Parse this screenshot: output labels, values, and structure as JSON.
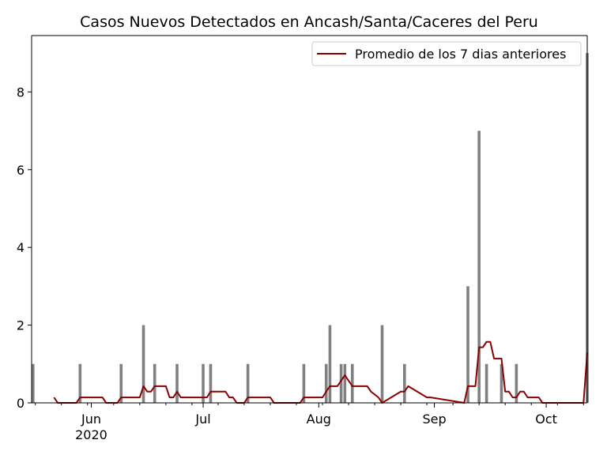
{
  "chart_data": {
    "type": "bar",
    "title": "Casos Nuevos Detectados en Ancash/Santa/Caceres del Peru",
    "xlabel": "",
    "ylabel": "",
    "x_ticks": [
      {
        "date": "2020-06-01",
        "label": "Jun",
        "sublabel": "2020"
      },
      {
        "date": "2020-07-01",
        "label": "Jul",
        "sublabel": ""
      },
      {
        "date": "2020-08-01",
        "label": "Aug",
        "sublabel": ""
      },
      {
        "date": "2020-09-01",
        "label": "Sep",
        "sublabel": ""
      },
      {
        "date": "2020-10-01",
        "label": "Oct",
        "sublabel": ""
      }
    ],
    "y_ticks": [
      0,
      2,
      4,
      6,
      8
    ],
    "xlim": [
      "2020-05-16",
      "2020-10-12"
    ],
    "ylim": [
      0,
      9.45
    ],
    "legend": {
      "position": "top-right",
      "entries": [
        "Promedio de los 7 dias anteriores"
      ]
    },
    "colors": {
      "bars": "#808080",
      "line": "#8b0000"
    },
    "series": [
      {
        "type": "bar",
        "x": [
          "2020-05-16",
          "2020-05-29",
          "2020-06-09",
          "2020-06-15",
          "2020-06-18",
          "2020-06-24",
          "2020-07-01",
          "2020-07-03",
          "2020-07-13",
          "2020-07-28",
          "2020-08-03",
          "2020-08-04",
          "2020-08-07",
          "2020-08-08",
          "2020-08-10",
          "2020-08-18",
          "2020-08-24",
          "2020-09-10",
          "2020-09-13",
          "2020-09-15",
          "2020-09-19",
          "2020-09-23",
          "2020-10-12"
        ],
        "values": [
          1,
          1,
          1,
          2,
          1,
          1,
          1,
          1,
          1,
          1,
          1,
          2,
          1,
          1,
          1,
          2,
          1,
          3,
          7,
          1,
          1,
          1,
          9
        ]
      },
      {
        "type": "line",
        "name": "Promedio de los 7 dias anteriores",
        "x": [
          "2020-05-22",
          "2020-05-23",
          "2020-05-28",
          "2020-05-29",
          "2020-06-04",
          "2020-06-05",
          "2020-06-07",
          "2020-06-08",
          "2020-06-09",
          "2020-06-14",
          "2020-06-15",
          "2020-06-16",
          "2020-06-17",
          "2020-06-18",
          "2020-06-21",
          "2020-06-22",
          "2020-06-23",
          "2020-06-24",
          "2020-06-25",
          "2020-06-30",
          "2020-07-01",
          "2020-07-02",
          "2020-07-03",
          "2020-07-07",
          "2020-07-08",
          "2020-07-09",
          "2020-07-10",
          "2020-07-11",
          "2020-07-12",
          "2020-07-13",
          "2020-07-19",
          "2020-07-20",
          "2020-07-27",
          "2020-07-28",
          "2020-08-02",
          "2020-08-03",
          "2020-08-04",
          "2020-08-06",
          "2020-08-07",
          "2020-08-08",
          "2020-08-10",
          "2020-08-11",
          "2020-08-14",
          "2020-08-15",
          "2020-08-17",
          "2020-08-18",
          "2020-08-23",
          "2020-08-24",
          "2020-08-25",
          "2020-08-30",
          "2020-08-31",
          "2020-09-09",
          "2020-09-10",
          "2020-09-12",
          "2020-09-13",
          "2020-09-14",
          "2020-09-15",
          "2020-09-16",
          "2020-09-17",
          "2020-09-19",
          "2020-09-20",
          "2020-09-21",
          "2020-09-22",
          "2020-09-23",
          "2020-09-24",
          "2020-09-25",
          "2020-09-26",
          "2020-09-29",
          "2020-09-30",
          "2020-10-11",
          "2020-10-12"
        ],
        "values": [
          0.14,
          0,
          0,
          0.14,
          0.14,
          0,
          0,
          0,
          0.14,
          0.14,
          0.43,
          0.29,
          0.29,
          0.43,
          0.43,
          0.14,
          0.14,
          0.29,
          0.14,
          0.14,
          0.14,
          0.14,
          0.29,
          0.29,
          0.14,
          0.14,
          0,
          0,
          0,
          0.14,
          0.14,
          0,
          0,
          0.14,
          0.14,
          0.29,
          0.43,
          0.43,
          0.57,
          0.71,
          0.43,
          0.43,
          0.43,
          0.29,
          0.14,
          0,
          0.29,
          0.29,
          0.43,
          0.14,
          0.14,
          0,
          0.43,
          0.43,
          1.43,
          1.43,
          1.57,
          1.57,
          1.14,
          1.14,
          0.29,
          0.29,
          0.14,
          0.14,
          0.29,
          0.29,
          0.14,
          0.14,
          0,
          0,
          1.29
        ]
      }
    ]
  }
}
